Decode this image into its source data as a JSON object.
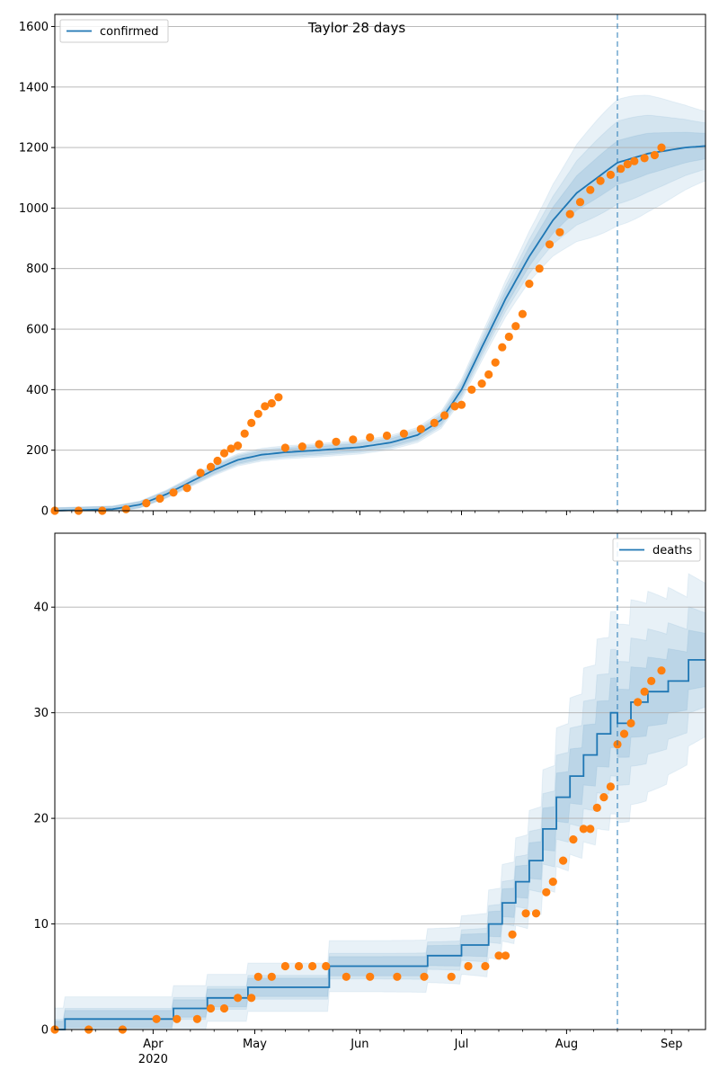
{
  "chart_data": [
    {
      "type": "line",
      "title": "Taylor 28 days",
      "xlabel": "",
      "ylabel": "",
      "ylim": [
        0,
        1640
      ],
      "xlim": [
        "2020-03-03",
        "2020-09-11"
      ],
      "grid": "horizontal",
      "legend_placement": "top-left",
      "yticks": [
        0,
        200,
        400,
        600,
        800,
        1000,
        1200,
        1400,
        1600
      ],
      "vline": {
        "x": "2020-08-16",
        "style": "dashed"
      },
      "series": [
        {
          "name": "confirmed",
          "kind": "line",
          "color": "#1f77b4",
          "x": [
            "2020-03-03",
            "2020-03-20",
            "2020-03-28",
            "2020-04-05",
            "2020-04-12",
            "2020-04-19",
            "2020-04-26",
            "2020-05-03",
            "2020-05-10",
            "2020-05-20",
            "2020-06-01",
            "2020-06-10",
            "2020-06-18",
            "2020-06-25",
            "2020-07-01",
            "2020-07-07",
            "2020-07-14",
            "2020-07-21",
            "2020-07-28",
            "2020-08-04",
            "2020-08-10",
            "2020-08-16",
            "2020-08-25",
            "2020-09-05",
            "2020-09-11"
          ],
          "y": [
            0,
            5,
            20,
            55,
            95,
            135,
            168,
            185,
            193,
            200,
            210,
            225,
            250,
            300,
            400,
            540,
            700,
            840,
            960,
            1050,
            1100,
            1150,
            1180,
            1200,
            1205
          ]
        },
        {
          "name": "",
          "kind": "scatter",
          "color": "#ff7f0e",
          "x": [
            "2020-03-03",
            "2020-03-10",
            "2020-03-17",
            "2020-03-24",
            "2020-03-30",
            "2020-04-03",
            "2020-04-07",
            "2020-04-11",
            "2020-04-15",
            "2020-04-18",
            "2020-04-20",
            "2020-04-22",
            "2020-04-24",
            "2020-04-26",
            "2020-04-28",
            "2020-04-30",
            "2020-05-02",
            "2020-05-04",
            "2020-05-06",
            "2020-05-08",
            "2020-05-10",
            "2020-05-15",
            "2020-05-20",
            "2020-05-25",
            "2020-05-30",
            "2020-06-04",
            "2020-06-09",
            "2020-06-14",
            "2020-06-19",
            "2020-06-23",
            "2020-06-26",
            "2020-06-29",
            "2020-07-01",
            "2020-07-04",
            "2020-07-07",
            "2020-07-09",
            "2020-07-11",
            "2020-07-13",
            "2020-07-15",
            "2020-07-17",
            "2020-07-19",
            "2020-07-21",
            "2020-07-24",
            "2020-07-27",
            "2020-07-30",
            "2020-08-02",
            "2020-08-05",
            "2020-08-08",
            "2020-08-11",
            "2020-08-14",
            "2020-08-17",
            "2020-08-19",
            "2020-08-21",
            "2020-08-24",
            "2020-08-27",
            "2020-08-29"
          ],
          "y": [
            0,
            0,
            0,
            5,
            25,
            40,
            60,
            75,
            125,
            145,
            165,
            190,
            205,
            215,
            255,
            290,
            320,
            345,
            355,
            375,
            208,
            212,
            220,
            228,
            235,
            242,
            248,
            255,
            270,
            290,
            315,
            345,
            350,
            400,
            420,
            450,
            490,
            540,
            575,
            610,
            650,
            750,
            800,
            880,
            920,
            980,
            1020,
            1060,
            1090,
            1110,
            1130,
            1145,
            1155,
            1165,
            1175,
            1200
          ]
        }
      ]
    },
    {
      "type": "line",
      "title": "",
      "xlabel": "",
      "ylabel": "",
      "ylim": [
        0,
        47
      ],
      "xlim": [
        "2020-03-03",
        "2020-09-11"
      ],
      "grid": "horizontal",
      "legend_placement": "top-right",
      "yticks": [
        0,
        10,
        20,
        30,
        40
      ],
      "xticks": [
        {
          "date": "2020-04-01",
          "label": "Apr",
          "sublabel": "2020"
        },
        {
          "date": "2020-05-01",
          "label": "May",
          "sublabel": ""
        },
        {
          "date": "2020-06-01",
          "label": "Jun",
          "sublabel": ""
        },
        {
          "date": "2020-07-01",
          "label": "Jul",
          "sublabel": ""
        },
        {
          "date": "2020-08-01",
          "label": "Aug",
          "sublabel": ""
        },
        {
          "date": "2020-09-01",
          "label": "Sep",
          "sublabel": ""
        }
      ],
      "vline": {
        "x": "2020-08-16",
        "style": "dashed"
      },
      "series": [
        {
          "name": "deaths",
          "kind": "step",
          "color": "#1f77b4",
          "x": [
            "2020-03-03",
            "2020-03-06",
            "2020-04-07",
            "2020-04-17",
            "2020-04-29",
            "2020-05-23",
            "2020-06-21",
            "2020-07-01",
            "2020-07-09",
            "2020-07-13",
            "2020-07-17",
            "2020-07-21",
            "2020-07-25",
            "2020-07-29",
            "2020-08-02",
            "2020-08-06",
            "2020-08-10",
            "2020-08-14",
            "2020-08-16",
            "2020-08-20",
            "2020-08-25",
            "2020-08-31",
            "2020-09-06",
            "2020-09-11"
          ],
          "y": [
            0,
            1,
            2,
            3,
            4,
            6,
            7,
            8,
            10,
            12,
            14,
            16,
            19,
            22,
            24,
            26,
            28,
            30,
            29,
            31,
            32,
            33,
            35,
            35
          ]
        },
        {
          "name": "",
          "kind": "scatter",
          "color": "#ff7f0e",
          "x": [
            "2020-03-03",
            "2020-03-13",
            "2020-03-23",
            "2020-04-02",
            "2020-04-08",
            "2020-04-14",
            "2020-04-18",
            "2020-04-22",
            "2020-04-26",
            "2020-04-30",
            "2020-05-02",
            "2020-05-06",
            "2020-05-10",
            "2020-05-14",
            "2020-05-18",
            "2020-05-22",
            "2020-05-28",
            "2020-06-04",
            "2020-06-12",
            "2020-06-20",
            "2020-06-28",
            "2020-07-03",
            "2020-07-08",
            "2020-07-12",
            "2020-07-14",
            "2020-07-16",
            "2020-07-20",
            "2020-07-23",
            "2020-07-26",
            "2020-07-28",
            "2020-07-31",
            "2020-08-03",
            "2020-08-06",
            "2020-08-08",
            "2020-08-10",
            "2020-08-12",
            "2020-08-14",
            "2020-08-16",
            "2020-08-18",
            "2020-08-20",
            "2020-08-22",
            "2020-08-24",
            "2020-08-26",
            "2020-08-29"
          ],
          "y": [
            0,
            0,
            0,
            1,
            1,
            1,
            2,
            2,
            3,
            3,
            5,
            5,
            6,
            6,
            6,
            6,
            5,
            5,
            5,
            5,
            5,
            6,
            6,
            7,
            7,
            9,
            11,
            11,
            13,
            14,
            16,
            18,
            19,
            19,
            21,
            22,
            23,
            27,
            28,
            29,
            31,
            32,
            33,
            34
          ]
        }
      ]
    }
  ]
}
